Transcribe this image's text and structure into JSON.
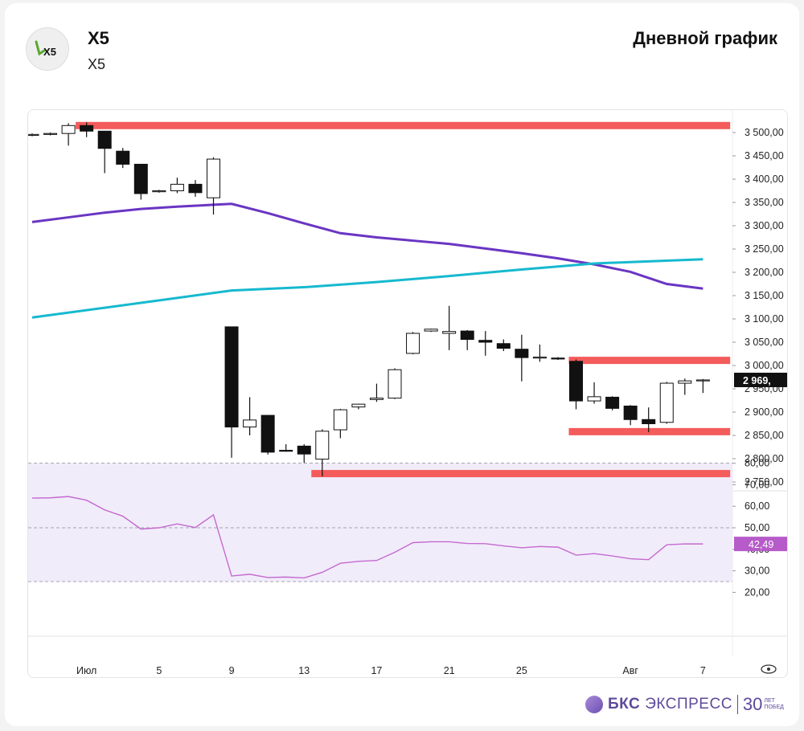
{
  "header": {
    "ticker": "X5",
    "ticker_sub": "X5",
    "logo_text": "X5",
    "chart_title": "Дневной график"
  },
  "footer": {
    "brand_bold": "БКС",
    "brand_rest": "ЭКСПРЕСС",
    "brand_number": "30",
    "brand_years_1": "ЛЕТ",
    "brand_years_2": "ПОБЕД"
  },
  "colors": {
    "level": "#f45b5b",
    "ma_purple": "#6a35c3",
    "ma_cyan": "#16b9cf",
    "rsi_line": "#c46ad0",
    "rsi_fill": "#f1ecfa",
    "rsi_badge": "#b65bc9",
    "price_badge": "#111111"
  },
  "chart_data": {
    "type": "candlestick",
    "price_axis": {
      "ticks": [
        "3 500,00",
        "3 450,00",
        "3 400,00",
        "3 350,00",
        "3 300,00",
        "3 250,00",
        "3 200,00",
        "3 150,00",
        "3 100,00",
        "3 050,00",
        "3 000,00",
        "2 950,00",
        "2 900,00",
        "2 850,00",
        "2 800,00",
        "2 750,00"
      ],
      "tick_values": [
        3500,
        3450,
        3400,
        3350,
        3300,
        3250,
        3200,
        3150,
        3100,
        3050,
        3000,
        2950,
        2900,
        2850,
        2800,
        2750
      ],
      "last_price_label": "2 969,",
      "last_price": 2969
    },
    "x_axis": {
      "labels": [
        "Июл",
        "5",
        "9",
        "13",
        "17",
        "21",
        "25",
        "Авг",
        "7"
      ],
      "label_index": [
        3,
        7,
        11,
        15,
        19,
        23,
        27,
        33,
        37
      ]
    },
    "candles": [
      {
        "o": 3495,
        "h": 3498,
        "l": 3492,
        "c": 3496
      },
      {
        "o": 3496,
        "h": 3500,
        "l": 3494,
        "c": 3498
      },
      {
        "o": 3498,
        "h": 3520,
        "l": 3472,
        "c": 3515
      },
      {
        "o": 3515,
        "h": 3522,
        "l": 3490,
        "c": 3503
      },
      {
        "o": 3503,
        "h": 3503,
        "l": 3413,
        "c": 3466
      },
      {
        "o": 3460,
        "h": 3467,
        "l": 3424,
        "c": 3432
      },
      {
        "o": 3432,
        "h": 3432,
        "l": 3356,
        "c": 3369
      },
      {
        "o": 3374,
        "h": 3377,
        "l": 3371,
        "c": 3375
      },
      {
        "o": 3375,
        "h": 3403,
        "l": 3370,
        "c": 3389
      },
      {
        "o": 3389,
        "h": 3398,
        "l": 3362,
        "c": 3371
      },
      {
        "o": 3360,
        "h": 3447,
        "l": 3324,
        "c": 3443
      },
      {
        "o": 3083,
        "h": 3083,
        "l": 2802,
        "c": 2868
      },
      {
        "o": 2868,
        "h": 2932,
        "l": 2850,
        "c": 2883
      },
      {
        "o": 2893,
        "h": 2893,
        "l": 2809,
        "c": 2814
      },
      {
        "o": 2818,
        "h": 2831,
        "l": 2815,
        "c": 2817
      },
      {
        "o": 2827,
        "h": 2831,
        "l": 2791,
        "c": 2810
      },
      {
        "o": 2799,
        "h": 2863,
        "l": 2762,
        "c": 2859
      },
      {
        "o": 2862,
        "h": 2907,
        "l": 2844,
        "c": 2905
      },
      {
        "o": 2911,
        "h": 2918,
        "l": 2906,
        "c": 2917
      },
      {
        "o": 2927,
        "h": 2961,
        "l": 2922,
        "c": 2930
      },
      {
        "o": 2930,
        "h": 2994,
        "l": 2928,
        "c": 2991
      },
      {
        "o": 3026,
        "h": 3072,
        "l": 3024,
        "c": 3069
      },
      {
        "o": 3074,
        "h": 3079,
        "l": 3072,
        "c": 3078
      },
      {
        "o": 3069,
        "h": 3128,
        "l": 3033,
        "c": 3073
      },
      {
        "o": 3074,
        "h": 3076,
        "l": 3033,
        "c": 3056
      },
      {
        "o": 3054,
        "h": 3074,
        "l": 3021,
        "c": 3050
      },
      {
        "o": 3047,
        "h": 3056,
        "l": 3031,
        "c": 3037
      },
      {
        "o": 3035,
        "h": 3066,
        "l": 2966,
        "c": 3017
      },
      {
        "o": 3017,
        "h": 3045,
        "l": 3008,
        "c": 3018
      },
      {
        "o": 3016,
        "h": 3018,
        "l": 3012,
        "c": 3014
      },
      {
        "o": 3009,
        "h": 3013,
        "l": 2906,
        "c": 2924
      },
      {
        "o": 2924,
        "h": 2964,
        "l": 2918,
        "c": 2933
      },
      {
        "o": 2932,
        "h": 2934,
        "l": 2904,
        "c": 2908
      },
      {
        "o": 2913,
        "h": 2915,
        "l": 2872,
        "c": 2884
      },
      {
        "o": 2884,
        "h": 2910,
        "l": 2857,
        "c": 2875
      },
      {
        "o": 2878,
        "h": 2965,
        "l": 2875,
        "c": 2962
      },
      {
        "o": 2962,
        "h": 2972,
        "l": 2937,
        "c": 2967
      },
      {
        "o": 2968,
        "h": 2971,
        "l": 2941,
        "c": 2969
      }
    ],
    "levels": [
      {
        "value": 3515,
        "from_index": 2.4,
        "to_index": 38.5
      },
      {
        "value": 3011,
        "from_index": 29.6,
        "to_index": 38.5
      },
      {
        "value": 2858,
        "from_index": 29.6,
        "to_index": 38.5
      },
      {
        "value": 2768,
        "from_index": 15.4,
        "to_index": 38.5
      }
    ],
    "moving_averages": [
      {
        "color_key": "ma_purple",
        "points": [
          [
            0,
            3308
          ],
          [
            2,
            3318
          ],
          [
            4,
            3328
          ],
          [
            6,
            3336
          ],
          [
            8,
            3341
          ],
          [
            10,
            3345
          ],
          [
            11,
            3347
          ],
          [
            13,
            3327
          ],
          [
            15,
            3305
          ],
          [
            17,
            3284
          ],
          [
            19,
            3275
          ],
          [
            21,
            3268
          ],
          [
            23,
            3261
          ],
          [
            25,
            3251
          ],
          [
            27,
            3241
          ],
          [
            29,
            3230
          ],
          [
            31,
            3217
          ],
          [
            33,
            3201
          ],
          [
            35,
            3175
          ],
          [
            37,
            3165
          ]
        ]
      },
      {
        "color_key": "ma_cyan",
        "points": [
          [
            0,
            3103
          ],
          [
            4,
            3124
          ],
          [
            8,
            3145
          ],
          [
            11,
            3161
          ],
          [
            15,
            3168
          ],
          [
            19,
            3179
          ],
          [
            23,
            3192
          ],
          [
            27,
            3206
          ],
          [
            31,
            3219
          ],
          [
            35,
            3225
          ],
          [
            37,
            3228
          ]
        ]
      }
    ],
    "rsi": {
      "ticks": [
        "80,00",
        "70,00",
        "60,00",
        "50,00",
        "40,00",
        "30,00",
        "20,00"
      ],
      "tick_values": [
        80,
        70,
        60,
        50,
        40,
        30,
        20
      ],
      "band": [
        25,
        80
      ],
      "mid": 50,
      "last_label": "42,49",
      "last": 42.49,
      "values": [
        63.8,
        63.9,
        64.5,
        62.8,
        58.3,
        55.4,
        49.4,
        50.0,
        51.8,
        50.1,
        56.0,
        27.6,
        28.4,
        26.9,
        27.1,
        26.7,
        29.3,
        33.5,
        34.4,
        34.8,
        38.6,
        43.1,
        43.5,
        43.5,
        42.7,
        42.6,
        41.6,
        40.7,
        41.3,
        41.0,
        37.3,
        38.0,
        36.9,
        35.6,
        35.2,
        42.1,
        42.5,
        42.49
      ]
    }
  }
}
